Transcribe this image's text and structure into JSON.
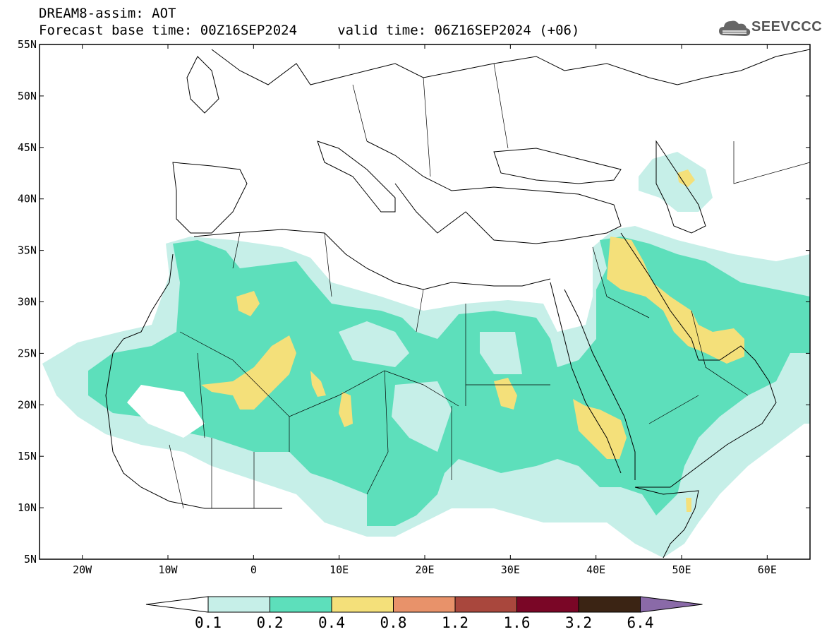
{
  "header": {
    "title_line1": "DREAM8-assim: AOT",
    "title_line2": "Forecast base time: 00Z16SEP2024     valid time: 06Z16SEP2024 (+06)"
  },
  "logo": {
    "text": "SEEVCCC",
    "icon": "cloud-icon"
  },
  "map": {
    "lon_range": [
      -25,
      65
    ],
    "lat_range": [
      5,
      55
    ],
    "lat_labels": [
      "5N",
      "10N",
      "15N",
      "20N",
      "25N",
      "30N",
      "35N",
      "40N",
      "45N",
      "50N",
      "55N"
    ],
    "lon_labels": [
      "20W",
      "10W",
      "0",
      "10E",
      "20E",
      "30E",
      "40E",
      "50E",
      "60E"
    ]
  },
  "colorbar": {
    "levels": [
      "0.1",
      "0.2",
      "0.4",
      "0.8",
      "1.2",
      "1.6",
      "3.2",
      "6.4"
    ],
    "colors": [
      "#ffffff",
      "#c6efe8",
      "#5ddfbb",
      "#f4e07a",
      "#e8926a",
      "#a9473d",
      "#7a0626",
      "#3b2414",
      "#8a6aa8"
    ]
  }
}
